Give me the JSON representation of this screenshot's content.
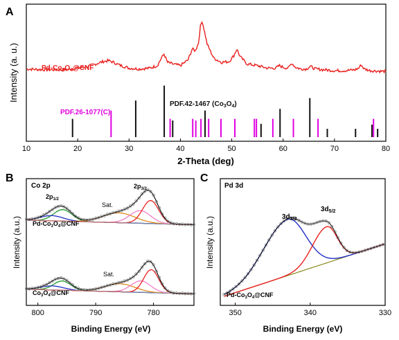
{
  "colors": {
    "red": "#e8201e",
    "magenta": "#e000e0",
    "black": "#111111",
    "blue": "#1f2ec8",
    "green": "#1f9a2a",
    "orange": "#e08a1c",
    "pink": "#f080c8",
    "olive": "#8a8a20",
    "gray": "#999999"
  },
  "chart_data": [
    {
      "panel": "A",
      "type": "line",
      "xlabel": "2-Theta (deg)",
      "ylabel": "Intensity (a. u.)",
      "xlim": [
        10,
        80
      ],
      "xticks": [
        10,
        20,
        30,
        40,
        50,
        60,
        70,
        80
      ],
      "series": [
        {
          "name": "Pd-Co3O4@CNF",
          "x": [
            10,
            14,
            18,
            20,
            22,
            24,
            25,
            26,
            27,
            28,
            30,
            32,
            34,
            35.5,
            36.3,
            36.8,
            37.5,
            38.5,
            40,
            41.5,
            42.3,
            42.9,
            43.5,
            43.9,
            44.2,
            44.6,
            45.2,
            46.5,
            48,
            49.5,
            50.4,
            51.0,
            51.6,
            53,
            55,
            57,
            58.5,
            59.3,
            60,
            61,
            61.7,
            62.4,
            63.5,
            64.5,
            65.3,
            66.3,
            68,
            70,
            72,
            74,
            74.7,
            75.2,
            75.8,
            77,
            80
          ],
          "y": [
            8.2,
            8.1,
            8.1,
            8.3,
            8.5,
            8.9,
            9.1,
            9.2,
            9.0,
            8.7,
            8.3,
            8.2,
            8.3,
            8.6,
            9.5,
            10.0,
            9.0,
            8.8,
            8.6,
            9.3,
            10.6,
            10.4,
            11.3,
            13.3,
            14.0,
            13.0,
            11.2,
            9.5,
            9.0,
            9.1,
            9.8,
            10.6,
            9.7,
            8.8,
            8.6,
            8.3,
            8.3,
            8.6,
            8.4,
            8.3,
            8.9,
            8.4,
            8.2,
            8.2,
            8.5,
            8.2,
            8.1,
            8.0,
            8.0,
            8.1,
            8.3,
            8.7,
            8.2,
            8.0,
            7.9
          ]
        }
      ],
      "labels": {
        "sample": "Pd-Co3O4@CNF",
        "ref_pd": "PDF.26-1077(C)",
        "ref_co": "PDF.42-1467 (Co3O4)"
      },
      "reference_Co3O4": {
        "x": [
          19.0,
          31.3,
          36.85,
          38.5,
          44.8,
          55.7,
          59.4,
          65.2,
          68.6,
          74.1,
          77.3,
          78.4
        ],
        "y": [
          2.2,
          4.4,
          6.2,
          2.0,
          3.2,
          1.6,
          3.4,
          4.7,
          1.0,
          1.0,
          1.5,
          1.0
        ]
      },
      "reference_PDF26_1077": {
        "x": [
          26.5,
          38.0,
          42.4,
          43.0,
          44.0,
          45.5,
          47.9,
          50.6,
          54.4,
          54.8,
          58.0,
          62.0,
          66.8,
          77.6
        ],
        "y": [
          3.2,
          2.2,
          2.2,
          2.0,
          2.2,
          2.2,
          2.2,
          2.2,
          2.2,
          2.2,
          2.2,
          2.2,
          2.2,
          2.2
        ]
      }
    },
    {
      "panel": "B",
      "type": "line",
      "title": "Co 2p",
      "xlabel": "Binding Energy (eV)",
      "ylabel": "Intensity (a.u.)",
      "xlim": [
        802,
        773
      ],
      "xticks": [
        800,
        790,
        780
      ],
      "annotations": [
        "2p1/2",
        "2p3/2",
        "Sat.",
        "Sat."
      ],
      "sample_labels": [
        "Pd-Co3O4@CNF",
        "Co3O4@CNF"
      ],
      "spectra": [
        {
          "name": "Pd-Co3O4@CNF",
          "offset": 6.0,
          "baseline_start": 0.4,
          "baseline_end": 0.0,
          "peaks": [
            {
              "center": 795.7,
              "height": 1.0,
              "width": 1.6,
              "color": "green"
            },
            {
              "center": 797.6,
              "height": 0.45,
              "width": 2.0,
              "color": "blue"
            },
            {
              "center": 786.0,
              "height": 0.85,
              "width": 2.8,
              "color": "orange"
            },
            {
              "center": 782.3,
              "height": 1.1,
              "width": 1.8,
              "color": "pink"
            },
            {
              "center": 780.5,
              "height": 2.0,
              "width": 1.4,
              "color": "red"
            }
          ]
        },
        {
          "name": "Co3O4@CNF",
          "offset": 0.0,
          "baseline_start": 0.4,
          "baseline_end": 0.0,
          "peaks": [
            {
              "center": 795.8,
              "height": 0.8,
              "width": 1.5,
              "color": "green"
            },
            {
              "center": 797.5,
              "height": 0.35,
              "width": 2.0,
              "color": "blue"
            },
            {
              "center": 785.8,
              "height": 0.7,
              "width": 2.6,
              "color": "orange"
            },
            {
              "center": 782.2,
              "height": 1.0,
              "width": 1.7,
              "color": "pink"
            },
            {
              "center": 780.4,
              "height": 2.0,
              "width": 1.3,
              "color": "red"
            }
          ]
        }
      ],
      "ylim": [
        -1.0,
        10.0
      ]
    },
    {
      "panel": "C",
      "type": "line",
      "title": "Pd 3d",
      "xlabel": "Binding Energy (eV)",
      "ylabel": "Intensity (a.u.)",
      "xlim": [
        352,
        330
      ],
      "xticks": [
        350,
        340,
        330
      ],
      "annotations": [
        "3d3/2",
        "3d5/2"
      ],
      "sample_label": "Pd-Co3O4@CNF",
      "baseline": {
        "start": 0.0,
        "end": 5.8
      },
      "peaks": [
        {
          "name": "3d3/2",
          "center": 343.0,
          "height": 6.2,
          "width": 2.4,
          "color": "blue"
        },
        {
          "name": "3d5/2",
          "center": 337.8,
          "height": 4.0,
          "width": 1.4,
          "color": "red"
        }
      ],
      "ylim": [
        -1.0,
        13.0
      ]
    }
  ],
  "panels": {
    "a": {
      "letter": "A",
      "sample_text": "Pd-Co",
      "sample_sub1": "3",
      "sample_mid": "O",
      "sample_sub2": "4",
      "sample_tail": "@CNF",
      "ref_pd": "PDF.26-1077(C)",
      "ref_co_main": "PDF.42-1467 (Co",
      "ref_co_sub1": "3",
      "ref_co_mid": "O",
      "ref_co_sub2": "4",
      "ref_co_tail": ")"
    },
    "b": {
      "letter": "B",
      "title": "Co 2p",
      "peak1_main": "2p",
      "peak1_sub": "1/2",
      "peak2_main": "2p",
      "peak2_sub": "3/2",
      "sat": "Sat.",
      "lab1_a": "Pd-Co",
      "lab1_s1": "3",
      "lab1_b": "O",
      "lab1_s2": "4",
      "lab1_c": "@CNF",
      "lab2_a": "Co",
      "lab2_s1": "3",
      "lab2_b": "O",
      "lab2_s2": "4",
      "lab2_c": "@CNF"
    },
    "c": {
      "letter": "C",
      "title": "Pd 3d",
      "peak1_main": "3d",
      "peak1_sub": "3/2",
      "peak2_main": "3d",
      "peak2_sub": "5/2",
      "lab_a": "Pd-Co",
      "lab_s1": "3",
      "lab_b": "O",
      "lab_s2": "4",
      "lab_c": "@CNF"
    }
  }
}
